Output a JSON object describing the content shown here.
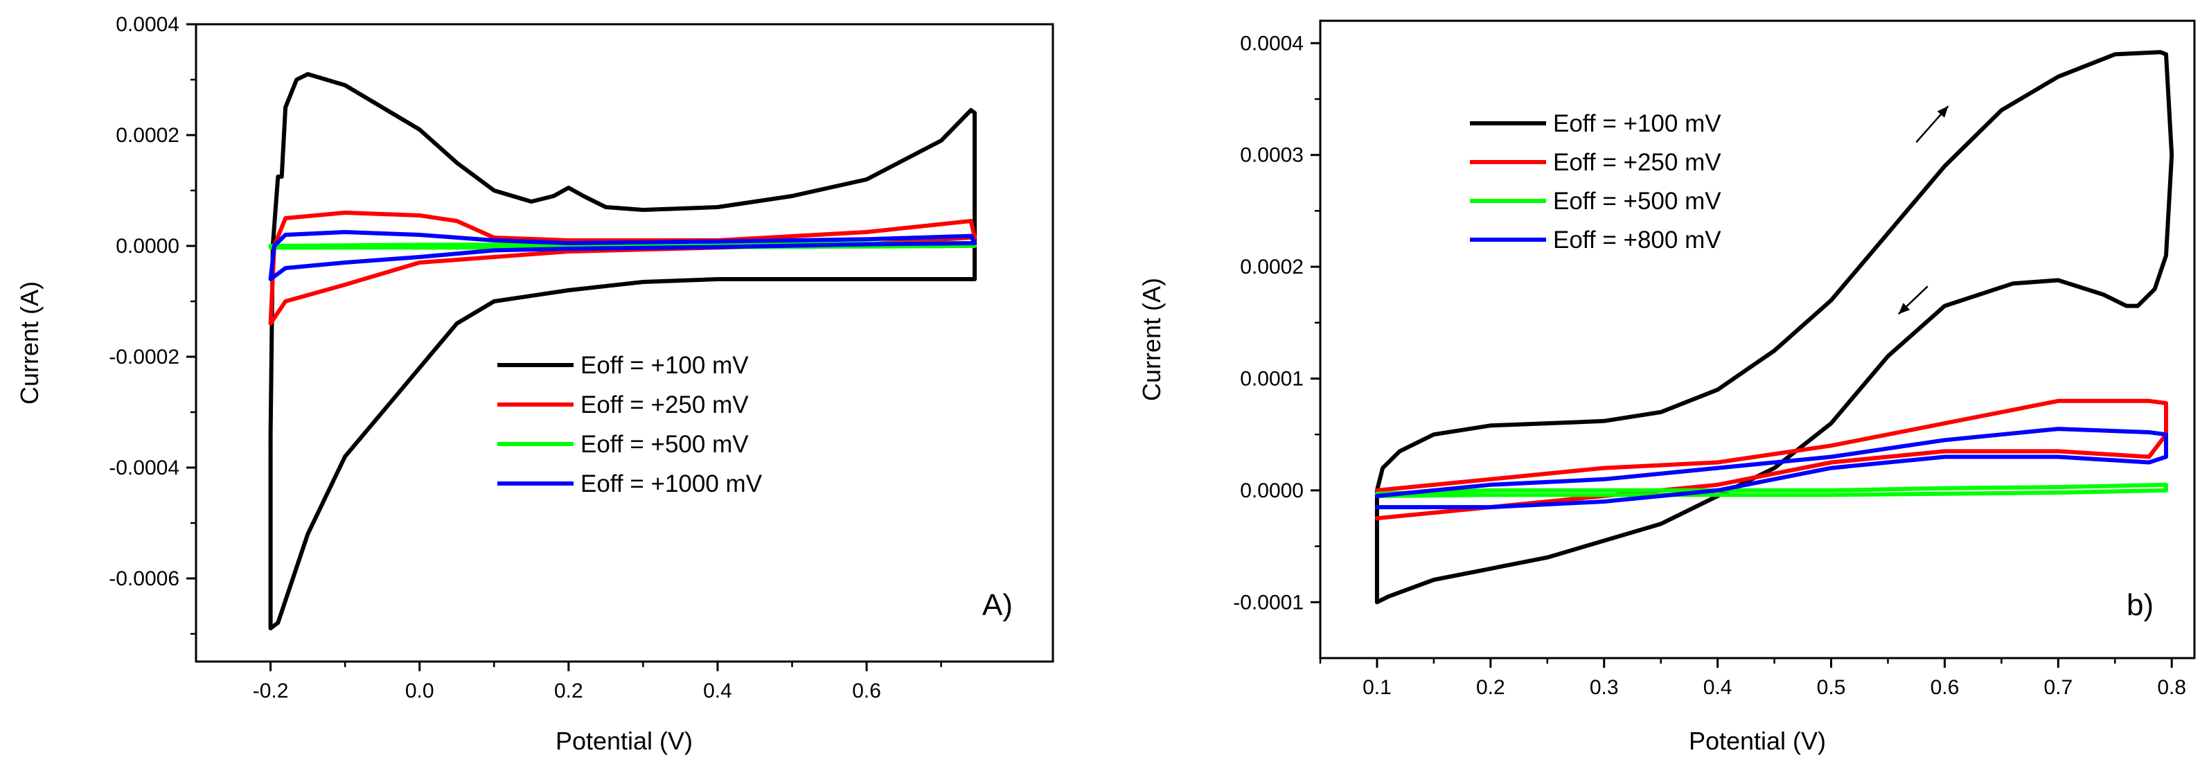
{
  "chart_data": [
    {
      "type": "line",
      "panel_label": "A)",
      "xlabel": "Potential (V)",
      "ylabel": "Current (A)",
      "xlim": [
        -0.3,
        0.85
      ],
      "ylim": [
        -0.00075,
        0.0004
      ],
      "xticks": [
        -0.2,
        0.0,
        0.2,
        0.4,
        0.6
      ],
      "xtick_labels": [
        "-0.2",
        "0.0",
        "0.2",
        "0.4",
        "0.6"
      ],
      "yticks": [
        0.0004,
        0.0002,
        0.0,
        -0.0002,
        -0.0004,
        -0.0006
      ],
      "ytick_labels": [
        "0.0004",
        "0.0002",
        "0.0000",
        "-0.0002",
        "-0.0004",
        "-0.0006"
      ],
      "legend_position": "lower-right",
      "series": [
        {
          "name": "Eoff = +100 mV",
          "color": "#000000",
          "x": [
            -0.185,
            -0.18,
            -0.165,
            -0.15,
            -0.1,
            -0.05,
            0.0,
            0.05,
            0.1,
            0.15,
            0.18,
            0.2,
            0.22,
            0.25,
            0.3,
            0.4,
            0.5,
            0.6,
            0.7,
            0.74,
            0.745,
            0.745,
            0.7,
            0.6,
            0.5,
            0.4,
            0.3,
            0.2,
            0.1,
            0.05,
            0.0,
            -0.05,
            -0.1,
            -0.15,
            -0.19,
            -0.2,
            -0.2,
            -0.197,
            -0.19,
            -0.185
          ],
          "y": [
            0.000125,
            0.00025,
            0.0003,
            0.00031,
            0.00029,
            0.00025,
            0.00021,
            0.00015,
            0.0001,
            8e-05,
            9e-05,
            0.000105,
            9e-05,
            7e-05,
            6.5e-05,
            7e-05,
            9e-05,
            0.00012,
            0.00019,
            0.000245,
            0.00024,
            -6e-05,
            -6e-05,
            -6e-05,
            -6e-05,
            -6e-05,
            -6.5e-05,
            -8e-05,
            -0.0001,
            -0.00014,
            -0.00022,
            -0.0003,
            -0.00038,
            -0.00052,
            -0.00068,
            -0.00069,
            -0.00034,
            0.0,
            0.000125,
            0.000125
          ]
        },
        {
          "name": "Eoff = +250 mV",
          "color": "#ff0000",
          "x": [
            -0.2,
            -0.195,
            -0.18,
            -0.1,
            0.0,
            0.05,
            0.1,
            0.2,
            0.4,
            0.6,
            0.74,
            0.745,
            0.74,
            0.6,
            0.4,
            0.2,
            0.1,
            0.0,
            -0.1,
            -0.18,
            -0.2,
            -0.2
          ],
          "y": [
            -0.00014,
            0.0,
            5e-05,
            6e-05,
            5.5e-05,
            4.5e-05,
            1.5e-05,
            1e-05,
            1e-05,
            2.5e-05,
            4.5e-05,
            1.5e-05,
            1.5e-05,
            3e-06,
            -3e-06,
            -1e-05,
            -2e-05,
            -3e-05,
            -7e-05,
            -0.0001,
            -0.00014,
            -0.00014
          ]
        },
        {
          "name": "Eoff = +500 mV",
          "color": "#00ff00",
          "x": [
            -0.2,
            0.0,
            0.2,
            0.4,
            0.6,
            0.74,
            0.745,
            0.6,
            0.4,
            0.2,
            0.0,
            -0.2
          ],
          "y": [
            0.0,
            2e-06,
            2e-06,
            3e-06,
            4e-06,
            5e-06,
            0.0,
            -1e-06,
            -2e-06,
            -3e-06,
            -3e-06,
            -3e-06
          ]
        },
        {
          "name": "Eoff = +1000 mV",
          "color": "#0000ff",
          "x": [
            -0.2,
            -0.195,
            -0.18,
            -0.1,
            0.0,
            0.1,
            0.2,
            0.4,
            0.6,
            0.74,
            0.745,
            0.6,
            0.4,
            0.2,
            0.1,
            0.0,
            -0.1,
            -0.18,
            -0.2
          ],
          "y": [
            -6e-05,
            0.0,
            2e-05,
            2.5e-05,
            2e-05,
            1e-05,
            5e-06,
            8e-06,
            1.2e-05,
            1.8e-05,
            5e-06,
            3e-06,
            -2e-06,
            -5e-06,
            -8e-06,
            -2e-05,
            -3e-05,
            -4e-05,
            -6e-05
          ]
        }
      ]
    },
    {
      "type": "line",
      "panel_label": "b)",
      "xlabel": "Potential (V)",
      "ylabel": "Current (A)",
      "xlim": [
        0.05,
        0.82
      ],
      "ylim": [
        -0.00015,
        0.00042
      ],
      "xticks": [
        0.1,
        0.2,
        0.3,
        0.4,
        0.5,
        0.6,
        0.7,
        0.8
      ],
      "xtick_labels": [
        "0.1",
        "0.2",
        "0.3",
        "0.4",
        "0.5",
        "0.6",
        "0.7",
        "0.8"
      ],
      "yticks": [
        0.0004,
        0.0003,
        0.0002,
        0.0001,
        0.0,
        -0.0001
      ],
      "ytick_labels": [
        "0.0004",
        "0.0003",
        "0.0002",
        "0.0001",
        "0.0000",
        "-0.0001"
      ],
      "legend_position": "top-left",
      "series": [
        {
          "name": "Eoff = +100 mV",
          "color": "#000000",
          "x": [
            0.1,
            0.1,
            0.105,
            0.12,
            0.15,
            0.2,
            0.25,
            0.3,
            0.35,
            0.4,
            0.45,
            0.5,
            0.55,
            0.6,
            0.65,
            0.7,
            0.75,
            0.79,
            0.795,
            0.8,
            0.795,
            0.785,
            0.77,
            0.76,
            0.74,
            0.7,
            0.66,
            0.6,
            0.55,
            0.5,
            0.45,
            0.4,
            0.35,
            0.3,
            0.25,
            0.2,
            0.15,
            0.11,
            0.1
          ],
          "y": [
            -0.0001,
            0.0,
            2e-05,
            3.5e-05,
            5e-05,
            5.8e-05,
            6e-05,
            6.2e-05,
            7e-05,
            9e-05,
            0.000125,
            0.00017,
            0.00023,
            0.00029,
            0.00034,
            0.00037,
            0.00039,
            0.000392,
            0.00039,
            0.0003,
            0.00021,
            0.00018,
            0.000165,
            0.000165,
            0.000175,
            0.000188,
            0.000185,
            0.000165,
            0.00012,
            6e-05,
            2e-05,
            -5e-06,
            -3e-05,
            -4.5e-05,
            -6e-05,
            -7e-05,
            -8e-05,
            -9.5e-05,
            -0.0001
          ]
        },
        {
          "name": "Eoff = +250 mV",
          "color": "#ff0000",
          "x": [
            0.1,
            0.2,
            0.3,
            0.4,
            0.5,
            0.6,
            0.7,
            0.78,
            0.795,
            0.795,
            0.78,
            0.7,
            0.6,
            0.5,
            0.4,
            0.3,
            0.2,
            0.1
          ],
          "y": [
            0.0,
            1e-05,
            2e-05,
            2.5e-05,
            4e-05,
            6e-05,
            8e-05,
            8e-05,
            7.8e-05,
            5e-05,
            3e-05,
            3.5e-05,
            3.5e-05,
            2.5e-05,
            5e-06,
            -5e-06,
            -1.5e-05,
            -2.5e-05
          ]
        },
        {
          "name": "Eoff = +500 mV",
          "color": "#00ff00",
          "x": [
            0.1,
            0.2,
            0.3,
            0.4,
            0.5,
            0.6,
            0.7,
            0.795,
            0.795,
            0.7,
            0.6,
            0.5,
            0.4,
            0.3,
            0.2,
            0.1
          ],
          "y": [
            -3e-06,
            0.0,
            0.0,
            0.0,
            0.0,
            2e-06,
            3e-06,
            5e-06,
            0.0,
            -2e-06,
            -3e-06,
            -4e-06,
            -4e-06,
            -4e-06,
            -4e-06,
            -5e-06
          ]
        },
        {
          "name": "Eoff = +800 mV",
          "color": "#0000ff",
          "x": [
            0.1,
            0.2,
            0.3,
            0.4,
            0.5,
            0.6,
            0.7,
            0.78,
            0.795,
            0.795,
            0.78,
            0.7,
            0.6,
            0.5,
            0.4,
            0.3,
            0.2,
            0.1
          ],
          "y": [
            -5e-06,
            5e-06,
            1e-05,
            2e-05,
            3e-05,
            4.5e-05,
            5.5e-05,
            5.2e-05,
            5e-05,
            3e-05,
            2.5e-05,
            3e-05,
            3e-05,
            2e-05,
            0.0,
            -1e-05,
            -1.5e-05,
            -1.5e-05
          ]
        }
      ],
      "annotations": [
        {
          "type": "arrow",
          "direction": "up-right",
          "x_from": 0.575,
          "y_from": 0.00033,
          "x_to": 0.6,
          "y_to": 0.00033
        },
        {
          "type": "arrow",
          "direction": "down-left",
          "x_from": 0.585,
          "y_from": 0.000185,
          "x_to": 0.565,
          "y_to": 0.00016
        }
      ]
    }
  ]
}
